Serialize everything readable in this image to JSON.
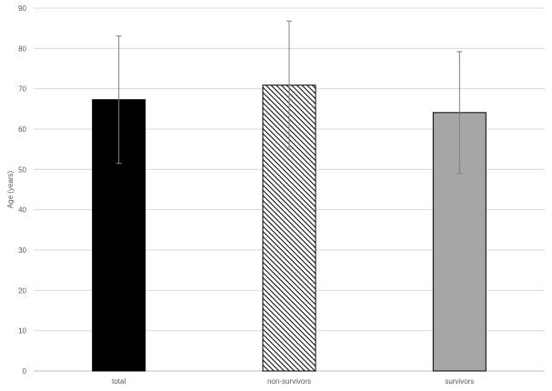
{
  "chart_data": {
    "type": "bar",
    "title": "",
    "xlabel": "",
    "ylabel": "Age (years)",
    "ylim": [
      0,
      90
    ],
    "yticks": [
      0,
      10,
      20,
      30,
      40,
      50,
      60,
      70,
      80,
      90
    ],
    "grid": true,
    "legend": "none",
    "categories": [
      "total",
      "non-survivors",
      "survivors"
    ],
    "values": [
      67.3,
      70.9,
      64.1
    ],
    "error": [
      15.8,
      15.9,
      15.1
    ],
    "bar_styles": [
      "solid-black",
      "diagonal-hatch",
      "solid-gray"
    ],
    "colors": {
      "total": "#000000",
      "non_survivors_hatch": "#000000",
      "survivors": "#a6a6a6",
      "grid": "#d9d9d9",
      "axis": "#bfbfbf",
      "text": "#595959"
    }
  }
}
